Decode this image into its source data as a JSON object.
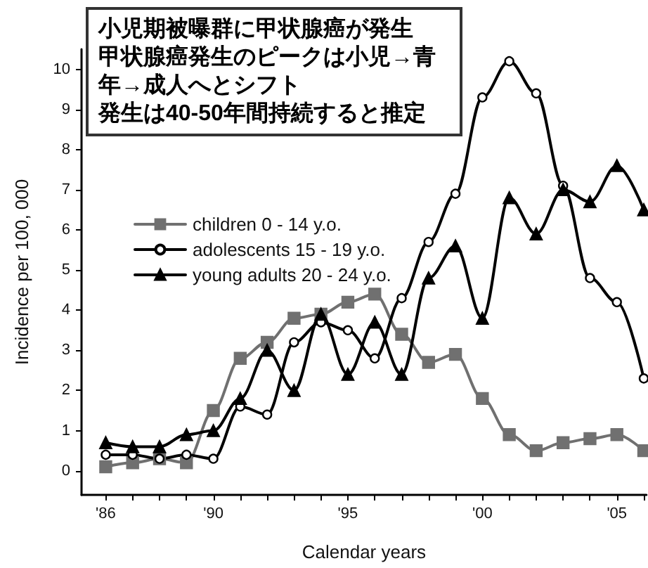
{
  "chart_data": {
    "type": "line",
    "annotations": [
      "小児期被曝群に甲状腺癌が発生",
      "甲状腺癌発生のピークは小児→青年→成人へとシフト",
      "発生は40-50年間持続すると推定"
    ],
    "xlabel": "Calendar years",
    "ylabel": "Incidence per 100, 000",
    "x": [
      1986,
      1987,
      1988,
      1989,
      1990,
      1991,
      1992,
      1993,
      1994,
      1995,
      1996,
      1997,
      1998,
      1999,
      2000,
      2001,
      2002,
      2003,
      2004,
      2005,
      2006
    ],
    "series": [
      {
        "name": "children 0 - 14 y.o.",
        "color": "#707070",
        "marker": "square",
        "values": [
          0.1,
          0.2,
          0.3,
          0.2,
          1.5,
          2.8,
          3.2,
          3.8,
          3.9,
          4.2,
          4.4,
          3.4,
          2.7,
          2.9,
          1.8,
          0.9,
          0.5,
          0.7,
          0.8,
          0.9,
          0.5
        ]
      },
      {
        "name": "adolescents 15 - 19 y.o.",
        "color": "#000000",
        "marker": "circle",
        "values": [
          0.4,
          0.4,
          0.3,
          0.4,
          0.3,
          1.6,
          1.4,
          3.2,
          3.7,
          3.5,
          2.8,
          4.3,
          5.7,
          6.9,
          9.3,
          10.2,
          9.4,
          7.1,
          4.8,
          4.2,
          2.3
        ]
      },
      {
        "name": "young adults 20 - 24 y.o.",
        "color": "#000000",
        "marker": "triangle",
        "values": [
          0.7,
          0.6,
          0.6,
          0.9,
          1.0,
          1.8,
          3.0,
          2.0,
          3.9,
          2.4,
          3.7,
          2.4,
          4.8,
          5.6,
          3.8,
          6.8,
          5.9,
          7.0,
          6.7,
          7.6,
          6.5
        ]
      }
    ],
    "xlim": [
      1985.1,
      2006.1
    ],
    "xticks": [
      {
        "value": 1986,
        "label": "'86"
      },
      {
        "value": 1987,
        "label": null
      },
      {
        "value": 1988,
        "label": null
      },
      {
        "value": 1989,
        "label": null
      },
      {
        "value": 1990,
        "label": "'90"
      },
      {
        "value": 1991,
        "label": null
      },
      {
        "value": 1992,
        "label": null
      },
      {
        "value": 1993,
        "label": null
      },
      {
        "value": 1994,
        "label": null
      },
      {
        "value": 1995,
        "label": "'95"
      },
      {
        "value": 1996,
        "label": null
      },
      {
        "value": 1997,
        "label": null
      },
      {
        "value": 1998,
        "label": null
      },
      {
        "value": 1999,
        "label": null
      },
      {
        "value": 2000,
        "label": "'00"
      },
      {
        "value": 2001,
        "label": null
      },
      {
        "value": 2002,
        "label": null
      },
      {
        "value": 2003,
        "label": null
      },
      {
        "value": 2004,
        "label": null
      },
      {
        "value": 2005,
        "label": "'05"
      },
      {
        "value": 2006,
        "label": null
      }
    ],
    "ylim": [
      -0.6,
      10.5
    ],
    "yticks": [
      0,
      1,
      2,
      3,
      4,
      5,
      6,
      7,
      8,
      9,
      10
    ],
    "grid": false,
    "legend": "top left",
    "line_style": "solid"
  }
}
